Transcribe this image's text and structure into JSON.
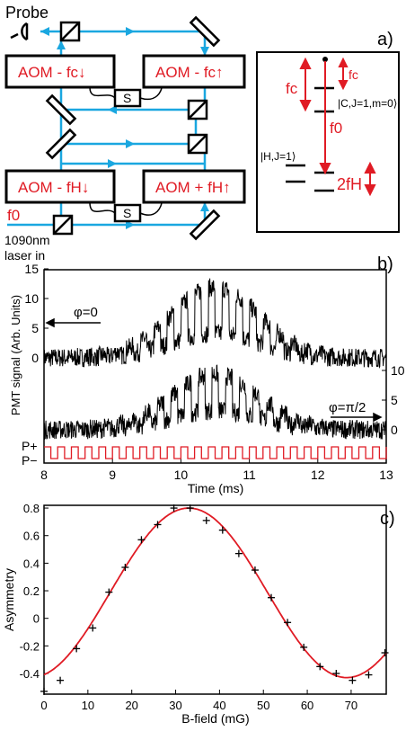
{
  "colors": {
    "beam": "#1aa7e0",
    "red": "#e01b24",
    "black": "#000000"
  },
  "panel_a": {
    "label": "a)",
    "probe": "Probe",
    "aom_fc_down": "AOM - fc↓",
    "aom_fc_up": "AOM - fc↑",
    "aom_fh_down": "AOM - fH↓",
    "aom_fh_up": "AOM + fH↑",
    "switch": "S",
    "f0": "f0",
    "laser_line1": "1090nm",
    "laser_line2": "laser in",
    "level_c": "|C,J=1,m=0⟩",
    "level_h": "|H,J=1⟩",
    "fc_label": "fc",
    "fc_small": "fc",
    "f0_level": "f0",
    "fh_label": "2fH"
  },
  "panel_b": {
    "label": "b)",
    "ylabel": "PMT signal (Arb. Units)",
    "xlabel": "Time (ms)",
    "phi0": "φ=0",
    "phi90": "φ=π/2",
    "p_plus": "P+",
    "p_minus": "P−",
    "left_ticks": [
      "0",
      "5",
      "10",
      "15"
    ],
    "right_ticks": [
      "0",
      "5",
      "10"
    ],
    "x_ticks": [
      "8",
      "9",
      "10",
      "11",
      "12",
      "13"
    ]
  },
  "chart_data": [
    {
      "type": "line",
      "xlabel": "Time (ms)",
      "ylabel": "PMT signal (Arb. Units)",
      "xlim": [
        8,
        13
      ],
      "series": [
        {
          "name": "φ=0",
          "trace": "upper",
          "envelope_center_ms": 10.5,
          "envelope_width_ms": 0.9,
          "peak": 14,
          "baseline": 0
        },
        {
          "name": "φ=π/2",
          "trace": "lower",
          "envelope_center_ms": 10.5,
          "envelope_width_ms": 0.9,
          "peak": 11,
          "baseline": 0
        },
        {
          "name": "P+/P−",
          "trace": "square",
          "period_ms": 0.2
        }
      ]
    },
    {
      "type": "scatter",
      "xlabel": "B-field (mG)",
      "ylabel": "Asymmetry",
      "xlim": [
        0,
        78
      ],
      "ylim": [
        -0.55,
        0.82
      ],
      "x_ticks": [
        "0",
        "10",
        "20",
        "30",
        "40",
        "50",
        "60",
        "70"
      ],
      "y_ticks": [
        "-0.4",
        "-0.2",
        "0",
        "0.2",
        "0.4",
        "0.6",
        "0.8"
      ],
      "points_x": [
        0,
        3.7,
        7.4,
        11.1,
        14.8,
        18.5,
        22.2,
        25.9,
        29.6,
        33.3,
        37,
        40.7,
        44.4,
        48.1,
        51.8,
        55.5,
        59.2,
        62.9,
        66.6,
        70.3,
        74,
        77.7
      ],
      "points_y": [
        -0.53,
        -0.45,
        -0.22,
        -0.07,
        0.19,
        0.37,
        0.57,
        0.68,
        0.8,
        0.8,
        0.71,
        0.64,
        0.47,
        0.35,
        0.15,
        -0.03,
        -0.21,
        -0.35,
        -0.4,
        -0.45,
        -0.41,
        -0.25
      ],
      "fit": {
        "type": "sine",
        "offset": 0.185,
        "amplitude": 0.615,
        "period_mG": 72,
        "peak_mG": 33
      }
    }
  ],
  "panel_c": {
    "label": "c)"
  }
}
